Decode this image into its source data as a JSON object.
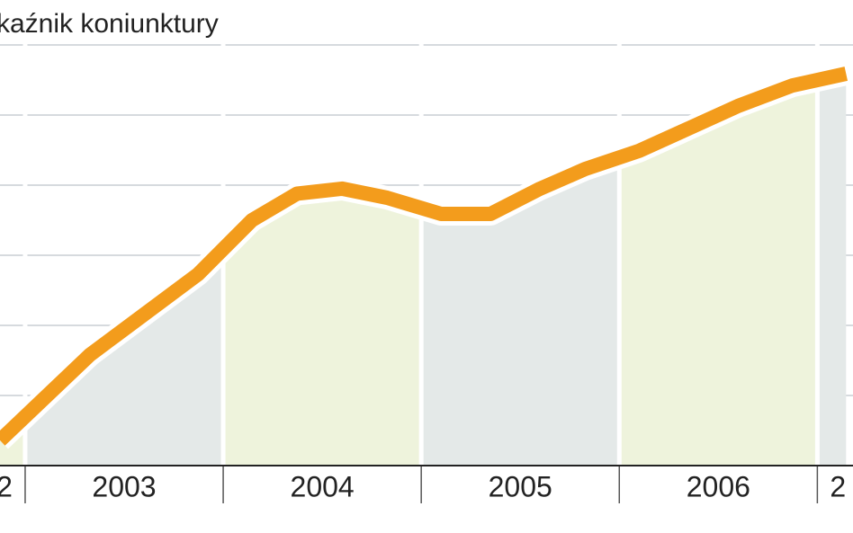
{
  "chart_data": {
    "type": "area-line",
    "title": "kaźnik koniunktury",
    "x": [
      2002.873,
      2003.327,
      2003.873,
      2004.145,
      2004.373,
      2004.6,
      2004.827,
      2005.1,
      2005.35,
      2005.6,
      2005.827,
      2006.1,
      2006.327,
      2006.6,
      2006.873,
      2007.145
    ],
    "series": [
      {
        "color": "#f39c1c",
        "values": [
          0.36,
          1.58,
          2.73,
          3.5,
          3.88,
          3.95,
          3.82,
          3.59,
          3.59,
          3.95,
          4.23,
          4.49,
          4.78,
          5.13,
          5.42,
          5.59
        ]
      }
    ],
    "xlim": [
      2002.873,
      2007.18
    ],
    "ylim": [
      0,
      6
    ],
    "gridlines": [
      1,
      2,
      3,
      4,
      5,
      6
    ],
    "periods": [
      {
        "label": "2",
        "start": 2002,
        "end": 2003,
        "fill": "#eef3dc"
      },
      {
        "label": "2003",
        "start": 2003,
        "end": 2004,
        "fill": "#e4e9e8"
      },
      {
        "label": "2004",
        "start": 2004,
        "end": 2005,
        "fill": "#eef3dc"
      },
      {
        "label": "2005",
        "start": 2005,
        "end": 2006,
        "fill": "#e4e9e8"
      },
      {
        "label": "2006",
        "start": 2006,
        "end": 2007,
        "fill": "#eef3dc"
      },
      {
        "label": "2",
        "start": 2007,
        "end": 2008,
        "fill": "#e4e9e8"
      }
    ]
  }
}
